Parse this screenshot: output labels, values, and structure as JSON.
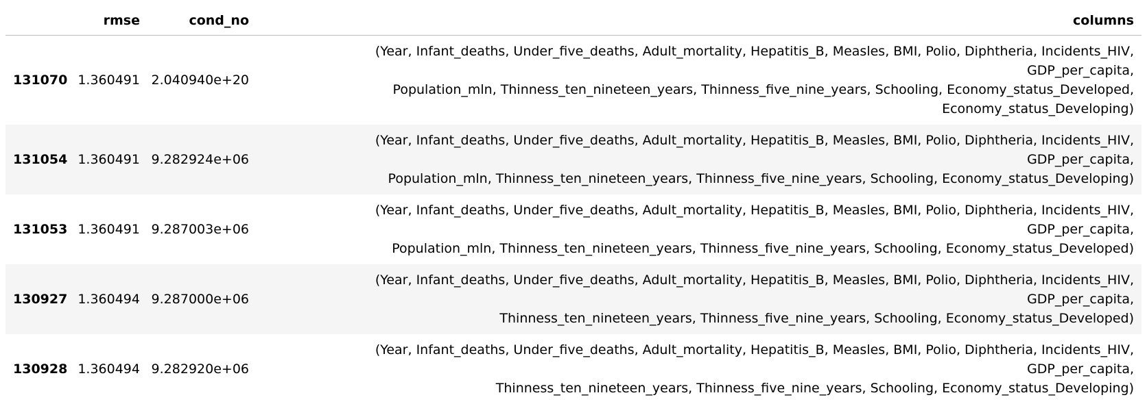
{
  "table": {
    "headers": {
      "index": "",
      "rmse": "rmse",
      "cond_no": "cond_no",
      "columns": "columns"
    },
    "rows": [
      {
        "index": "131070",
        "rmse": "1.360491",
        "cond_no": "2.040940e+20",
        "columns_lines": [
          "(Year, Infant_deaths, Under_five_deaths, Adult_mortality, Hepatitis_B, Measles, BMI, Polio, Diphtheria, Incidents_HIV, GDP_per_capita,",
          "Population_mln, Thinness_ten_nineteen_years, Thinness_five_nine_years, Schooling, Economy_status_Developed,",
          "Economy_status_Developing)"
        ]
      },
      {
        "index": "131054",
        "rmse": "1.360491",
        "cond_no": "9.282924e+06",
        "columns_lines": [
          "(Year, Infant_deaths, Under_five_deaths, Adult_mortality, Hepatitis_B, Measles, BMI, Polio, Diphtheria, Incidents_HIV, GDP_per_capita,",
          "Population_mln, Thinness_ten_nineteen_years, Thinness_five_nine_years, Schooling, Economy_status_Developing)"
        ]
      },
      {
        "index": "131053",
        "rmse": "1.360491",
        "cond_no": "9.287003e+06",
        "columns_lines": [
          "(Year, Infant_deaths, Under_five_deaths, Adult_mortality, Hepatitis_B, Measles, BMI, Polio, Diphtheria, Incidents_HIV, GDP_per_capita,",
          "Population_mln, Thinness_ten_nineteen_years, Thinness_five_nine_years, Schooling, Economy_status_Developed)"
        ]
      },
      {
        "index": "130927",
        "rmse": "1.360494",
        "cond_no": "9.287000e+06",
        "columns_lines": [
          "(Year, Infant_deaths, Under_five_deaths, Adult_mortality, Hepatitis_B, Measles, BMI, Polio, Diphtheria, Incidents_HIV, GDP_per_capita,",
          "Thinness_ten_nineteen_years, Thinness_five_nine_years, Schooling, Economy_status_Developed)"
        ]
      },
      {
        "index": "130928",
        "rmse": "1.360494",
        "cond_no": "9.282920e+06",
        "columns_lines": [
          "(Year, Infant_deaths, Under_five_deaths, Adult_mortality, Hepatitis_B, Measles, BMI, Polio, Diphtheria, Incidents_HIV, GDP_per_capita,",
          "Thinness_ten_nineteen_years, Thinness_five_nine_years, Schooling, Economy_status_Developing)"
        ]
      }
    ]
  }
}
